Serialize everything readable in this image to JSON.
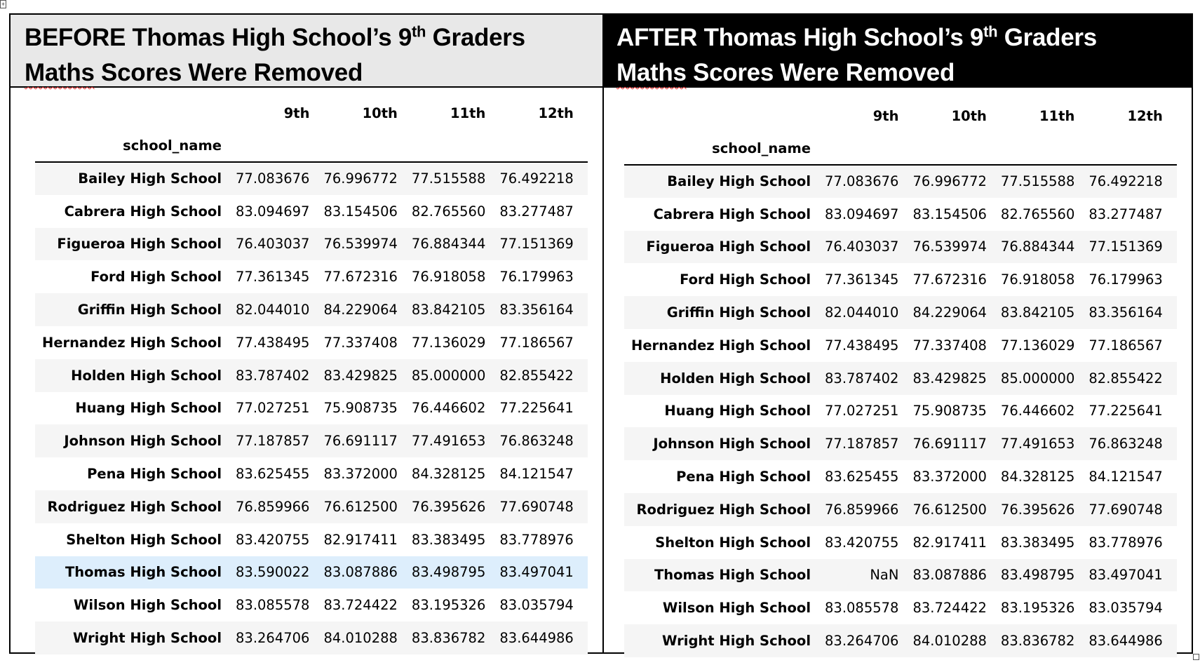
{
  "left_panel": {
    "title_part1": "BEFORE Thomas High School’s 9",
    "title_sup": "th",
    "title_part2": " Graders",
    "title_line2_word1": "Maths",
    "title_line2_rest": " Scores Were Removed",
    "index_name": "school_name",
    "columns": [
      "9th",
      "10th",
      "11th",
      "12th"
    ],
    "rows": [
      {
        "school": "Bailey High School",
        "values": [
          "77.083676",
          "76.996772",
          "77.515588",
          "76.492218"
        ]
      },
      {
        "school": "Cabrera High School",
        "values": [
          "83.094697",
          "83.154506",
          "82.765560",
          "83.277487"
        ]
      },
      {
        "school": "Figueroa High School",
        "values": [
          "76.403037",
          "76.539974",
          "76.884344",
          "77.151369"
        ]
      },
      {
        "school": "Ford High School",
        "values": [
          "77.361345",
          "77.672316",
          "76.918058",
          "76.179963"
        ]
      },
      {
        "school": "Griffin High School",
        "values": [
          "82.044010",
          "84.229064",
          "83.842105",
          "83.356164"
        ]
      },
      {
        "school": "Hernandez High School",
        "values": [
          "77.438495",
          "77.337408",
          "77.136029",
          "77.186567"
        ]
      },
      {
        "school": "Holden High School",
        "values": [
          "83.787402",
          "83.429825",
          "85.000000",
          "82.855422"
        ]
      },
      {
        "school": "Huang High School",
        "values": [
          "77.027251",
          "75.908735",
          "76.446602",
          "77.225641"
        ]
      },
      {
        "school": "Johnson High School",
        "values": [
          "77.187857",
          "76.691117",
          "77.491653",
          "76.863248"
        ]
      },
      {
        "school": "Pena High School",
        "values": [
          "83.625455",
          "83.372000",
          "84.328125",
          "84.121547"
        ]
      },
      {
        "school": "Rodriguez High School",
        "values": [
          "76.859966",
          "76.612500",
          "76.395626",
          "77.690748"
        ]
      },
      {
        "school": "Shelton High School",
        "values": [
          "83.420755",
          "82.917411",
          "83.383495",
          "83.778976"
        ]
      },
      {
        "school": "Thomas High School",
        "values": [
          "83.590022",
          "83.087886",
          "83.498795",
          "83.497041"
        ],
        "highlighted": true
      },
      {
        "school": "Wilson High School",
        "values": [
          "83.085578",
          "83.724422",
          "83.195326",
          "83.035794"
        ]
      },
      {
        "school": "Wright High School",
        "values": [
          "83.264706",
          "84.010288",
          "83.836782",
          "83.644986"
        ]
      }
    ]
  },
  "right_panel": {
    "title_part1": "AFTER Thomas High School’s 9",
    "title_sup": "th",
    "title_part2": " Graders",
    "title_line2_word1": "Maths",
    "title_line2_rest": " Scores Were Removed",
    "index_name": "school_name",
    "columns": [
      "9th",
      "10th",
      "11th",
      "12th"
    ],
    "rows": [
      {
        "school": "Bailey High School",
        "values": [
          "77.083676",
          "76.996772",
          "77.515588",
          "76.492218"
        ]
      },
      {
        "school": "Cabrera High School",
        "values": [
          "83.094697",
          "83.154506",
          "82.765560",
          "83.277487"
        ]
      },
      {
        "school": "Figueroa High School",
        "values": [
          "76.403037",
          "76.539974",
          "76.884344",
          "77.151369"
        ]
      },
      {
        "school": "Ford High School",
        "values": [
          "77.361345",
          "77.672316",
          "76.918058",
          "76.179963"
        ]
      },
      {
        "school": "Griffin High School",
        "values": [
          "82.044010",
          "84.229064",
          "83.842105",
          "83.356164"
        ]
      },
      {
        "school": "Hernandez High School",
        "values": [
          "77.438495",
          "77.337408",
          "77.136029",
          "77.186567"
        ]
      },
      {
        "school": "Holden High School",
        "values": [
          "83.787402",
          "83.429825",
          "85.000000",
          "82.855422"
        ]
      },
      {
        "school": "Huang High School",
        "values": [
          "77.027251",
          "75.908735",
          "76.446602",
          "77.225641"
        ]
      },
      {
        "school": "Johnson High School",
        "values": [
          "77.187857",
          "76.691117",
          "77.491653",
          "76.863248"
        ]
      },
      {
        "school": "Pena High School",
        "values": [
          "83.625455",
          "83.372000",
          "84.328125",
          "84.121547"
        ]
      },
      {
        "school": "Rodriguez High School",
        "values": [
          "76.859966",
          "76.612500",
          "76.395626",
          "77.690748"
        ]
      },
      {
        "school": "Shelton High School",
        "values": [
          "83.420755",
          "82.917411",
          "83.383495",
          "83.778976"
        ]
      },
      {
        "school": "Thomas High School",
        "values": [
          "NaN",
          "83.087886",
          "83.498795",
          "83.497041"
        ]
      },
      {
        "school": "Wilson High School",
        "values": [
          "83.085578",
          "83.724422",
          "83.195326",
          "83.035794"
        ]
      },
      {
        "school": "Wright High School",
        "values": [
          "83.264706",
          "84.010288",
          "83.836782",
          "83.644986"
        ]
      }
    ]
  }
}
